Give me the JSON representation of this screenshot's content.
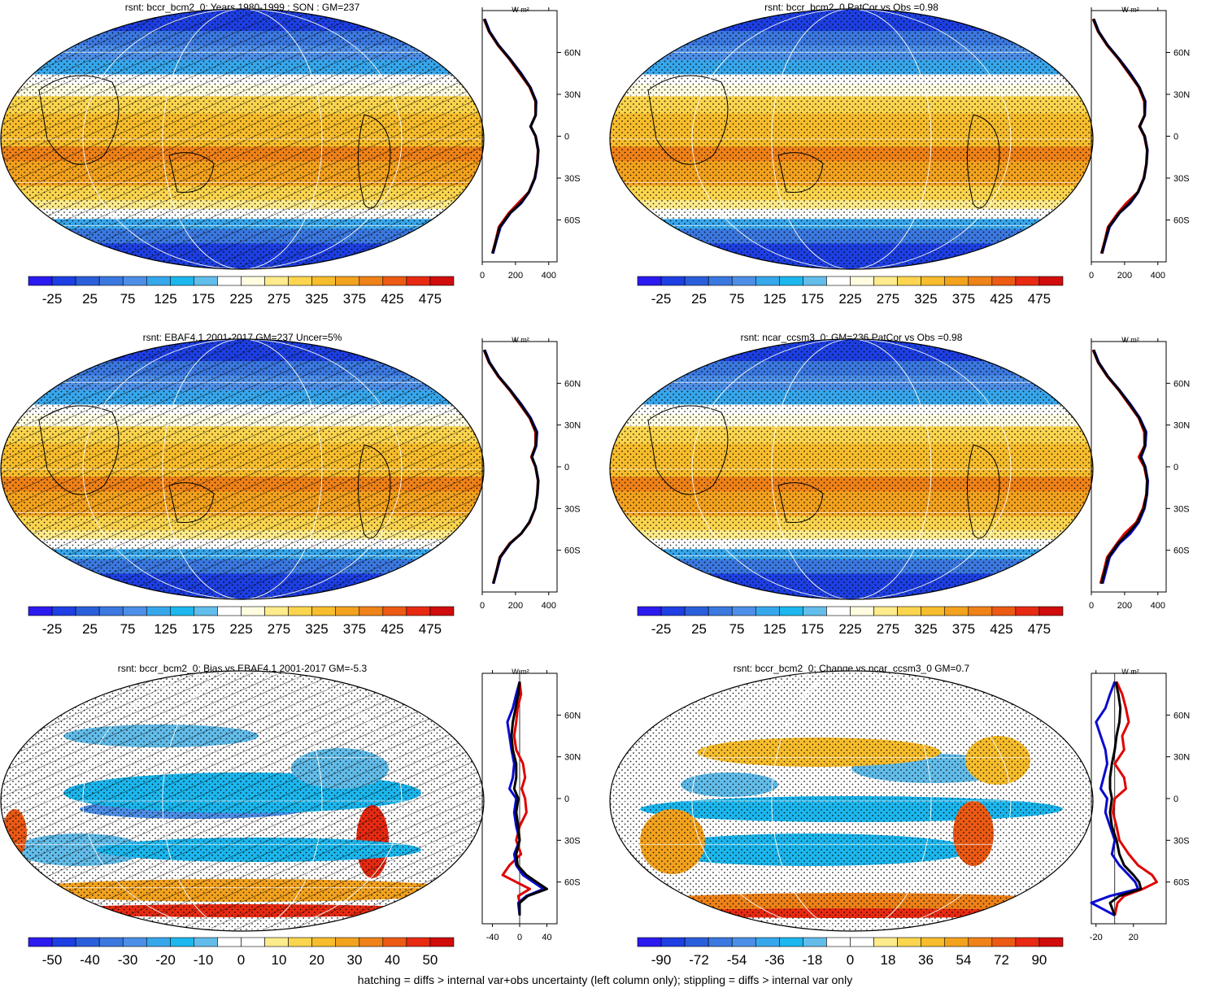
{
  "caption": "hatching = diffs > internal var+obs uncertainty (left column only); stippling = diffs > internal var only",
  "colors": {
    "abs_scale": [
      "#2b1bf0",
      "#1d3fe3",
      "#2a5fdb",
      "#3b78e0",
      "#4d8fe8",
      "#37a7ec",
      "#1cb7ee",
      "#62bdea",
      "#ffffff",
      "#fffce0",
      "#fdeb8c",
      "#fbd54e",
      "#f7bd2c",
      "#f3a21e",
      "#ef8218",
      "#ec5a14",
      "#e82a12",
      "#d10c0c"
    ],
    "diff_scale": [
      "#2b1bf0",
      "#1d3fe3",
      "#2a5fdb",
      "#3b78e0",
      "#4d8fe8",
      "#37a7ec",
      "#1cb7ee",
      "#62bdea",
      "#ffffff",
      "#ffffff",
      "#fdeb8c",
      "#fbd54e",
      "#f7bd2c",
      "#f3a21e",
      "#ef8218",
      "#ec5a14",
      "#e82a12",
      "#d10c0c"
    ],
    "line_obs": "#e00000",
    "line_model": "#0a0ad0",
    "line_ref": "#000000"
  },
  "chart_data": [
    {
      "type": "heatmap",
      "title": "rsnt: bccr_bcm2_0: Years 1980-1999 : SON : GM=237",
      "colorbar_labels": [
        "-25",
        "25",
        "75",
        "125",
        "175",
        "225",
        "275",
        "325",
        "375",
        "425",
        "475"
      ],
      "hatching": true,
      "profile": {
        "type": "line",
        "unit": "W m²",
        "xlim": [
          0,
          450
        ],
        "xticks": [
          "0",
          "200",
          "400"
        ],
        "ylim": [
          -90,
          90
        ],
        "yticks": [
          "60N",
          "30N",
          "0",
          "30S",
          "60S"
        ],
        "lat": [
          84,
          75,
          65,
          55,
          45,
          35,
          25,
          15,
          7,
          0,
          -10,
          -20,
          -30,
          -40,
          -48,
          -55,
          -65,
          -75,
          -84
        ],
        "series": [
          {
            "color_key": "line_obs",
            "values": [
              10,
              40,
              95,
              165,
              225,
              285,
              320,
              320,
              290,
              320,
              335,
              330,
              315,
              280,
              215,
              160,
              100,
              80,
              60
            ]
          },
          {
            "color_key": "line_model",
            "values": [
              15,
              45,
              100,
              170,
              235,
              290,
              325,
              322,
              290,
              322,
              338,
              332,
              318,
              282,
              235,
              170,
              110,
              85,
              65
            ]
          },
          {
            "color_key": "line_ref",
            "values": [
              12,
              42,
              98,
              168,
              230,
              288,
              322,
              321,
              292,
              321,
              336,
              331,
              316,
              281,
              230,
              168,
              105,
              82,
              62
            ]
          }
        ]
      }
    },
    {
      "type": "heatmap",
      "title": "rsnt: bccr_bcm2_0 PatCor vs Obs =0.98",
      "colorbar_labels": [
        "-25",
        "25",
        "75",
        "125",
        "175",
        "225",
        "275",
        "325",
        "375",
        "425",
        "475"
      ],
      "hatching": false,
      "profile": {
        "type": "line",
        "unit": "W m²",
        "xlim": [
          0,
          450
        ],
        "xticks": [
          "0",
          "200",
          "400"
        ],
        "ylim": [
          -90,
          90
        ],
        "yticks": [
          "60N",
          "30N",
          "0",
          "30S",
          "60S"
        ],
        "lat": [
          84,
          75,
          65,
          55,
          45,
          35,
          25,
          15,
          7,
          0,
          -10,
          -20,
          -30,
          -40,
          -48,
          -55,
          -65,
          -75,
          -84
        ],
        "series": [
          {
            "color_key": "line_obs",
            "values": [
              10,
              40,
              95,
              165,
              225,
              285,
              318,
              320,
              288,
              318,
              335,
              330,
              315,
              280,
              210,
              160,
              100,
              80,
              60
            ]
          },
          {
            "color_key": "line_model",
            "values": [
              15,
              45,
              100,
              170,
              235,
              290,
              325,
              322,
              292,
              322,
              338,
              332,
              318,
              282,
              235,
              170,
              110,
              85,
              65
            ]
          },
          {
            "color_key": "line_ref",
            "values": [
              12,
              42,
              98,
              168,
              230,
              288,
              322,
              321,
              290,
              321,
              336,
              331,
              316,
              281,
              228,
              168,
              105,
              82,
              62
            ]
          }
        ]
      }
    },
    {
      "type": "heatmap",
      "title": "rsnt: EBAF4.1 2001-2017 GM=237 Uncer=5%",
      "colorbar_labels": [
        "-25",
        "25",
        "75",
        "125",
        "175",
        "225",
        "275",
        "325",
        "375",
        "425",
        "475"
      ],
      "hatching": true,
      "profile": {
        "type": "line",
        "unit": "W m²",
        "xlim": [
          0,
          450
        ],
        "xticks": [
          "0",
          "200",
          "400"
        ],
        "ylim": [
          -90,
          90
        ],
        "yticks": [
          "60N",
          "30N",
          "0",
          "30S",
          "60S"
        ],
        "lat": [
          84,
          75,
          65,
          55,
          45,
          35,
          25,
          15,
          7,
          0,
          -10,
          -20,
          -30,
          -40,
          -48,
          -55,
          -65,
          -75,
          -84
        ],
        "series": [
          {
            "color_key": "line_obs",
            "values": [
              10,
              40,
              95,
              165,
              225,
              285,
              320,
              320,
              295,
              320,
              335,
              330,
              318,
              285,
              235,
              165,
              105,
              85,
              65
            ]
          },
          {
            "color_key": "line_model",
            "values": [
              15,
              45,
              100,
              170,
              235,
              292,
              330,
              325,
              300,
              322,
              338,
              332,
              318,
              282,
              235,
              170,
              110,
              88,
              68
            ]
          },
          {
            "color_key": "line_ref",
            "values": [
              12,
              42,
              98,
              168,
              230,
              288,
              325,
              322,
              298,
              321,
              336,
              331,
              318,
              283,
              235,
              168,
              107,
              86,
              66
            ]
          }
        ]
      }
    },
    {
      "type": "heatmap",
      "title": "rsnt: ncar_ccsm3_0: GM=236 PatCor vs Obs =0.98",
      "colorbar_labels": [
        "-25",
        "25",
        "75",
        "125",
        "175",
        "225",
        "275",
        "325",
        "375",
        "425",
        "475"
      ],
      "hatching": false,
      "profile": {
        "type": "line",
        "unit": "W m²",
        "xlim": [
          0,
          450
        ],
        "xticks": [
          "0",
          "200",
          "400"
        ],
        "ylim": [
          -90,
          90
        ],
        "yticks": [
          "60N",
          "30N",
          "0",
          "30S",
          "60S"
        ],
        "lat": [
          84,
          75,
          65,
          55,
          45,
          35,
          25,
          15,
          7,
          0,
          -10,
          -20,
          -30,
          -40,
          -48,
          -55,
          -65,
          -75,
          -84
        ],
        "series": [
          {
            "color_key": "line_obs",
            "values": [
              10,
              40,
              95,
              165,
              225,
              285,
              318,
              320,
              285,
              318,
              335,
              330,
              310,
              270,
              200,
              155,
              95,
              75,
              55
            ]
          },
          {
            "color_key": "line_model",
            "values": [
              15,
              45,
              100,
              170,
              235,
              292,
              330,
              325,
              300,
              325,
              340,
              335,
              320,
              285,
              235,
              170,
              110,
              88,
              68
            ]
          },
          {
            "color_key": "line_ref",
            "values": [
              12,
              42,
              98,
              168,
              230,
              288,
              325,
              322,
              295,
              322,
              337,
              332,
              315,
              278,
              220,
              162,
              102,
              80,
              60
            ]
          }
        ]
      }
    },
    {
      "type": "heatmap",
      "title": "rsnt: bccr_bcm2_0: Bias vs EBAF4.1 2001-2017  GM=-5.3",
      "colorbar_labels": [
        "-50",
        "-40",
        "-30",
        "-20",
        "-10",
        "0",
        "10",
        "20",
        "30",
        "40",
        "50"
      ],
      "hatching": true,
      "profile": {
        "type": "line",
        "unit": "W m²",
        "xlim": [
          -55,
          55
        ],
        "xticks": [
          "-40",
          "0",
          "40"
        ],
        "ylim": [
          -90,
          90
        ],
        "yticks": [
          "60N",
          "30N",
          "0",
          "30S",
          "60S"
        ],
        "lat": [
          84,
          75,
          65,
          55,
          45,
          35,
          25,
          15,
          7,
          0,
          -10,
          -20,
          -30,
          -40,
          -48,
          -55,
          -60,
          -65,
          -70,
          -75,
          -84
        ],
        "series": [
          {
            "color_key": "line_obs",
            "values": [
              0,
              2,
              -3,
              -5,
              -8,
              -5,
              5,
              8,
              3,
              8,
              10,
              0,
              -5,
              2,
              -15,
              -25,
              -5,
              15,
              -2,
              0,
              0
            ]
          },
          {
            "color_key": "line_model",
            "values": [
              0,
              -5,
              -10,
              -18,
              -15,
              -12,
              -8,
              -10,
              -15,
              -5,
              -8,
              -5,
              0,
              -8,
              -5,
              5,
              20,
              35,
              10,
              -2,
              0
            ]
          },
          {
            "color_key": "line_ref",
            "values": [
              0,
              -2,
              -6,
              -10,
              -12,
              -10,
              -5,
              -5,
              -8,
              -2,
              -5,
              -2,
              0,
              -5,
              -3,
              10,
              25,
              40,
              12,
              0,
              0
            ]
          }
        ]
      }
    },
    {
      "type": "heatmap",
      "title": "rsnt: bccr_bcm2_0: Change vs ncar_ccsm3_0 GM=0.7",
      "colorbar_labels": [
        "-90",
        "-72",
        "-54",
        "-36",
        "-18",
        "0",
        "18",
        "36",
        "54",
        "72",
        "90"
      ],
      "hatching": false,
      "profile": {
        "type": "line",
        "unit": "W m²",
        "xlim": [
          -25,
          55
        ],
        "xticks": [
          "-20",
          "20"
        ],
        "ylim": [
          -90,
          90
        ],
        "yticks": [
          "60N",
          "30N",
          "0",
          "30S",
          "60S"
        ],
        "lat": [
          84,
          75,
          65,
          55,
          45,
          35,
          25,
          15,
          7,
          0,
          -10,
          -20,
          -30,
          -40,
          -48,
          -55,
          -60,
          -65,
          -70,
          -75,
          -84
        ],
        "series": [
          {
            "color_key": "line_obs",
            "values": [
              2,
              8,
              12,
              15,
              8,
              10,
              0,
              10,
              12,
              0,
              -2,
              2,
              5,
              15,
              25,
              40,
              45,
              30,
              10,
              3,
              0
            ]
          },
          {
            "color_key": "line_model",
            "values": [
              0,
              -5,
              -10,
              -20,
              -15,
              -10,
              -8,
              -12,
              -15,
              -8,
              -10,
              -5,
              0,
              -3,
              5,
              15,
              22,
              25,
              -5,
              -25,
              0
            ]
          },
          {
            "color_key": "line_ref",
            "values": [
              1,
              4,
              6,
              5,
              2,
              0,
              -3,
              -5,
              -5,
              -3,
              -5,
              -3,
              2,
              5,
              10,
              20,
              26,
              28,
              5,
              -5,
              0
            ]
          }
        ]
      }
    }
  ]
}
